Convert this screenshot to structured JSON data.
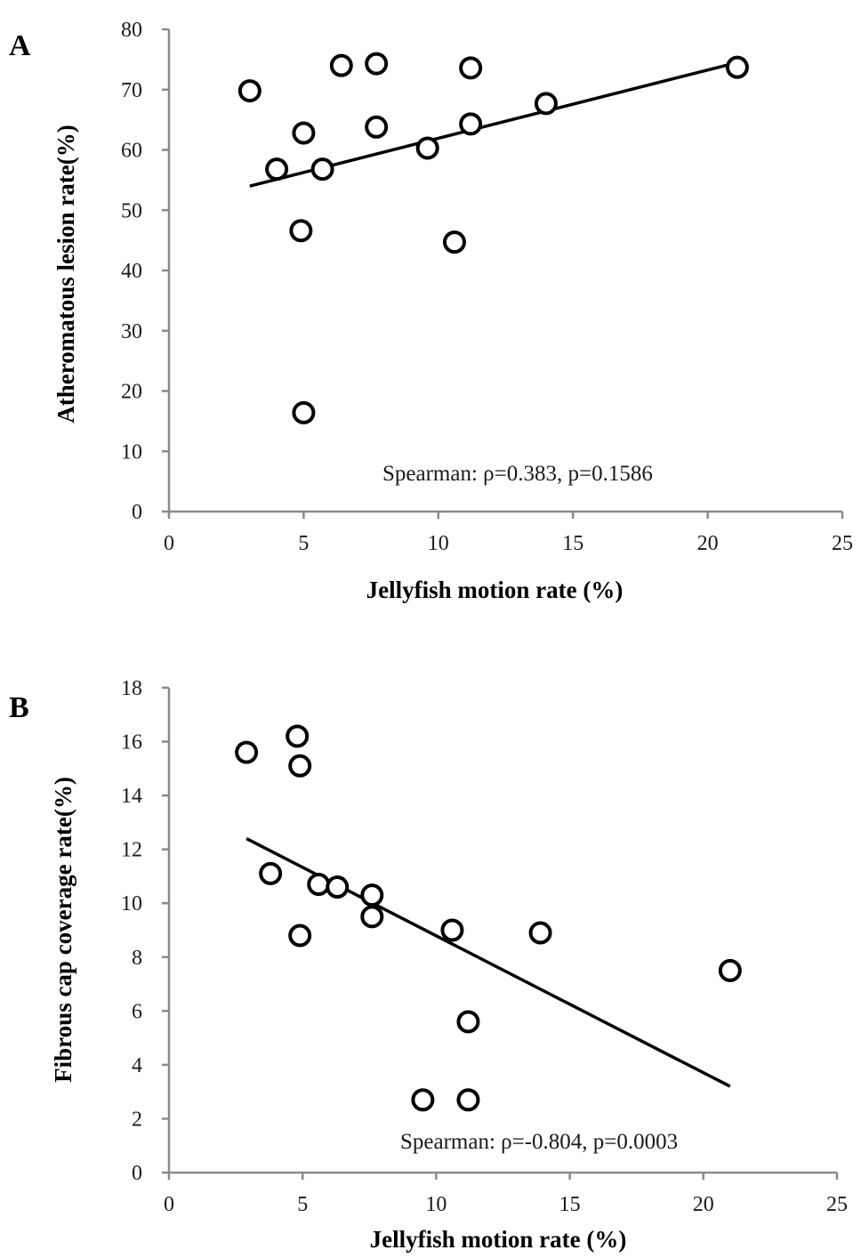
{
  "chart_data": [
    {
      "type": "scatter",
      "panel_label": "A",
      "xlabel": "Jellyfish motion rate (%)",
      "ylabel": "Atheromatous lesion rate(%)",
      "xlim": [
        0,
        25
      ],
      "ylim": [
        0,
        80
      ],
      "x_ticks": [
        "0",
        "5",
        "10",
        "15",
        "20",
        "25"
      ],
      "y_ticks": [
        "0",
        "10",
        "20",
        "30",
        "40",
        "50",
        "60",
        "70",
        "80"
      ],
      "annotation": "Spearman: ρ=0.383, p=0.1586",
      "points": [
        {
          "x": 3.0,
          "y": 69.8
        },
        {
          "x": 4.0,
          "y": 56.8
        },
        {
          "x": 5.0,
          "y": 62.8
        },
        {
          "x": 4.9,
          "y": 46.6
        },
        {
          "x": 5.0,
          "y": 16.4
        },
        {
          "x": 5.7,
          "y": 56.8
        },
        {
          "x": 6.4,
          "y": 74.0
        },
        {
          "x": 7.7,
          "y": 74.3
        },
        {
          "x": 7.7,
          "y": 63.8
        },
        {
          "x": 9.6,
          "y": 60.3
        },
        {
          "x": 10.6,
          "y": 44.7
        },
        {
          "x": 11.2,
          "y": 73.6
        },
        {
          "x": 11.2,
          "y": 64.3
        },
        {
          "x": 14.0,
          "y": 67.7
        },
        {
          "x": 21.1,
          "y": 73.7
        }
      ],
      "trendline": {
        "x": [
          3.0,
          21.1
        ],
        "y": [
          54.0,
          74.5
        ]
      },
      "grid": false,
      "legend": "none"
    },
    {
      "type": "scatter",
      "panel_label": "B",
      "xlabel": "Jellyfish motion rate (%)",
      "ylabel": "Fibrous cap coverage rate(%)",
      "xlim": [
        0,
        25
      ],
      "ylim": [
        0,
        18
      ],
      "x_ticks": [
        "0",
        "5",
        "10",
        "15",
        "20",
        "25"
      ],
      "y_ticks": [
        "0",
        "2",
        "4",
        "6",
        "8",
        "10",
        "12",
        "14",
        "16",
        "18"
      ],
      "annotation": "Spearman: ρ=-0.804, p=0.0003",
      "points": [
        {
          "x": 2.9,
          "y": 15.6
        },
        {
          "x": 4.8,
          "y": 16.2
        },
        {
          "x": 4.9,
          "y": 15.1
        },
        {
          "x": 3.8,
          "y": 11.1
        },
        {
          "x": 4.9,
          "y": 8.8
        },
        {
          "x": 5.6,
          "y": 10.7
        },
        {
          "x": 6.3,
          "y": 10.6
        },
        {
          "x": 7.6,
          "y": 10.3
        },
        {
          "x": 7.6,
          "y": 9.5
        },
        {
          "x": 10.6,
          "y": 9.0
        },
        {
          "x": 13.9,
          "y": 8.9
        },
        {
          "x": 11.2,
          "y": 5.6
        },
        {
          "x": 9.5,
          "y": 2.7
        },
        {
          "x": 11.2,
          "y": 2.7
        },
        {
          "x": 21.0,
          "y": 7.5
        }
      ],
      "trendline": {
        "x": [
          2.9,
          21.0
        ],
        "y": [
          12.4,
          3.2
        ]
      },
      "grid": false,
      "legend": "none"
    }
  ]
}
